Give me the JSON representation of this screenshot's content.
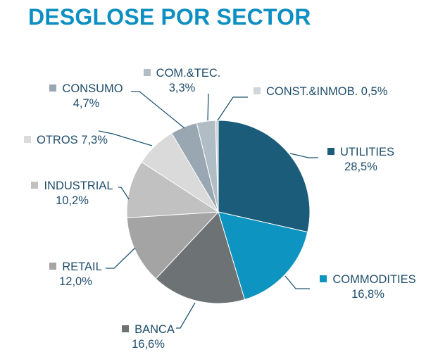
{
  "chart_data": {
    "type": "pie",
    "title": "DESGLOSE POR SECTOR",
    "start": "top",
    "direction": "clockwise",
    "slices": [
      {
        "name": "UTILITIES",
        "label": "28,5%",
        "value": 28.5,
        "color": "#1a5c7a"
      },
      {
        "name": "COMMODITIES",
        "label": "16,8%",
        "value": 16.8,
        "color": "#0e94c0"
      },
      {
        "name": "BANCA",
        "label": "16,6%",
        "value": 16.6,
        "color": "#6d7275"
      },
      {
        "name": "RETAIL",
        "label": "12,0%",
        "value": 12.0,
        "color": "#a4a4a4"
      },
      {
        "name": "INDUSTRIAL",
        "label": "10,2%",
        "value": 10.2,
        "color": "#c1c1c1"
      },
      {
        "name": "OTROS",
        "label": "7,3%",
        "value": 7.3,
        "color": "#dadada"
      },
      {
        "name": "CONSUMO",
        "label": "4,7%",
        "value": 4.7,
        "color": "#98a7b1"
      },
      {
        "name": "COM.&TEC.",
        "label": "3,3%",
        "value": 3.3,
        "color": "#b1bdc5"
      },
      {
        "name": "CONST.&INMOB.",
        "label": "0,5%",
        "value": 0.5,
        "color": "#cfd5da"
      }
    ],
    "legend": "leader-line labels around pie"
  }
}
